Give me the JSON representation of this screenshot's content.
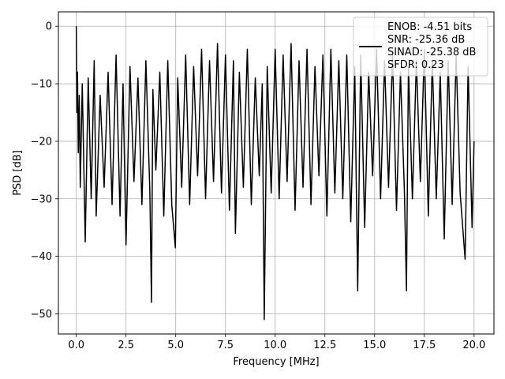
{
  "chart_data": {
    "type": "line",
    "title": "",
    "xlabel": "Frequency [MHz]",
    "ylabel": "PSD [dB]",
    "xlim": [
      -0.9,
      21.0
    ],
    "ylim": [
      -53.5,
      2.5
    ],
    "xticks": [
      0.0,
      2.5,
      5.0,
      7.5,
      10.0,
      12.5,
      15.0,
      17.5,
      20.0
    ],
    "xtick_labels": [
      "0.0",
      "2.5",
      "5.0",
      "7.5",
      "10.0",
      "12.5",
      "15.0",
      "17.5",
      "20.0"
    ],
    "yticks": [
      0,
      -10,
      -20,
      -30,
      -40,
      -50
    ],
    "ytick_labels": [
      "0",
      "−10",
      "−20",
      "−30",
      "−40",
      "−50"
    ],
    "grid": true,
    "legend": {
      "placement": "top-right",
      "lines": [
        "ENOB: -4.51 bits",
        "SNR: -25.36 dB",
        "SINAD: -25.38 dB",
        "SFDR: 0.23"
      ]
    },
    "series": [
      {
        "color": "#000000",
        "description": "dense noisy PSD trace, values mostly between about -35 and -5 dB",
        "x": [
          0.0,
          0.03,
          0.06,
          0.1,
          0.15,
          0.2,
          0.3,
          0.45,
          0.6,
          0.75,
          0.9,
          1.0,
          1.2,
          1.4,
          1.6,
          1.8,
          2.0,
          2.2,
          2.35,
          2.5,
          2.7,
          2.9,
          3.1,
          3.3,
          3.5,
          3.7,
          3.78,
          3.85,
          4.0,
          4.2,
          4.4,
          4.6,
          4.8,
          4.98,
          5.1,
          5.3,
          5.5,
          5.7,
          5.9,
          6.1,
          6.3,
          6.5,
          6.7,
          6.9,
          7.1,
          7.3,
          7.5,
          7.7,
          7.9,
          8.0,
          8.2,
          8.4,
          8.6,
          8.8,
          9.0,
          9.2,
          9.35,
          9.45,
          9.6,
          9.8,
          10.0,
          10.2,
          10.4,
          10.6,
          10.8,
          11.0,
          11.2,
          11.4,
          11.6,
          11.8,
          12.0,
          12.2,
          12.4,
          12.6,
          12.8,
          13.0,
          13.2,
          13.4,
          13.6,
          13.8,
          14.0,
          14.15,
          14.3,
          14.5,
          14.7,
          14.9,
          15.1,
          15.3,
          15.5,
          15.7,
          15.9,
          16.1,
          16.3,
          16.5,
          16.6,
          16.7,
          16.9,
          17.1,
          17.3,
          17.5,
          17.7,
          17.9,
          18.1,
          18.3,
          18.5,
          18.7,
          18.9,
          19.1,
          19.3,
          19.55,
          19.7,
          19.9,
          20.0
        ],
        "y": [
          0.0,
          -15.0,
          -8.0,
          -22.0,
          -12.0,
          -28.0,
          -10.0,
          -37.5,
          -9.0,
          -30.0,
          -6.0,
          -33.0,
          -12.0,
          -28.0,
          -8.0,
          -31.0,
          -5.0,
          -33.0,
          -10.0,
          -38.0,
          -7.0,
          -27.0,
          -9.0,
          -31.0,
          -6.0,
          -29.0,
          -48.0,
          -11.0,
          -25.0,
          -8.0,
          -33.0,
          -6.0,
          -31.0,
          -38.5,
          -9.0,
          -28.0,
          -5.0,
          -31.0,
          -7.0,
          -26.0,
          -4.0,
          -30.0,
          -6.0,
          -27.0,
          -3.0,
          -29.0,
          -5.0,
          -32.0,
          -6.0,
          -36.0,
          -8.0,
          -28.0,
          -4.0,
          -31.0,
          -9.0,
          -26.0,
          -10.0,
          -51.0,
          -7.0,
          -29.0,
          -4.0,
          -30.0,
          -5.0,
          -27.0,
          -3.0,
          -32.0,
          -6.0,
          -28.0,
          -4.0,
          -31.0,
          -7.0,
          -26.0,
          -5.0,
          -33.0,
          -4.0,
          -29.0,
          -6.0,
          -30.0,
          -5.0,
          -34.0,
          -7.0,
          -46.0,
          -5.0,
          -35.0,
          -8.0,
          -26.0,
          -4.0,
          -30.0,
          -6.0,
          -28.0,
          -5.0,
          -32.0,
          -8.0,
          -29.0,
          -46.0,
          -7.0,
          -30.0,
          -6.0,
          -27.0,
          -4.0,
          -33.0,
          -6.0,
          -30.0,
          -8.0,
          -37.0,
          -6.0,
          -31.0,
          -5.0,
          -29.0,
          -40.5,
          -7.0,
          -35.0,
          -20.0
        ]
      }
    ]
  }
}
